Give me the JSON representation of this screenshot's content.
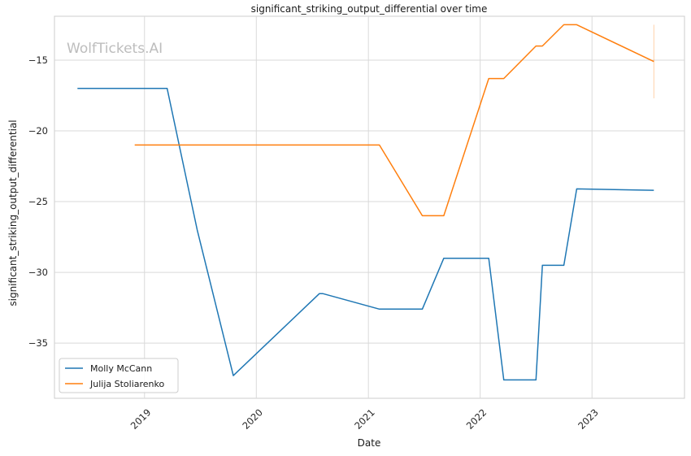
{
  "chart_data": {
    "type": "line",
    "title": "significant_striking_output_differential over time",
    "xlabel": "Date",
    "ylabel": "significant_striking_output_differential",
    "watermark": "WolfTickets.AI",
    "x_ticks": [
      {
        "label": "2019",
        "date": "2019-01-01"
      },
      {
        "label": "2020",
        "date": "2020-01-01"
      },
      {
        "label": "2021",
        "date": "2021-01-01"
      },
      {
        "label": "2022",
        "date": "2022-01-01"
      },
      {
        "label": "2023",
        "date": "2023-01-01"
      }
    ],
    "y_ticks": [
      -35,
      -30,
      -25,
      -20,
      -15
    ],
    "xlim": [
      "2018-03-13",
      "2023-10-30"
    ],
    "ylim": [
      -38.9,
      -11.9
    ],
    "grid": true,
    "legend": "lower-left",
    "series": [
      {
        "name": "Molly McCann",
        "color": "#1f77b4",
        "points": [
          {
            "date": "2018-05-27",
            "value": -17.0
          },
          {
            "date": "2019-03-16",
            "value": -17.0
          },
          {
            "date": "2019-06-22",
            "value": -27.0
          },
          {
            "date": "2019-10-18",
            "value": -37.3
          },
          {
            "date": "2020-07-25",
            "value": -31.5
          },
          {
            "date": "2020-08-05",
            "value": -31.5
          },
          {
            "date": "2021-02-06",
            "value": -32.6
          },
          {
            "date": "2021-06-26",
            "value": -32.6
          },
          {
            "date": "2021-09-04",
            "value": -29.0
          },
          {
            "date": "2022-01-29",
            "value": -29.0
          },
          {
            "date": "2022-03-19",
            "value": -37.6
          },
          {
            "date": "2022-07-02",
            "value": -37.6
          },
          {
            "date": "2022-07-23",
            "value": -29.5
          },
          {
            "date": "2022-10-01",
            "value": -29.5
          },
          {
            "date": "2022-11-12",
            "value": -24.1
          },
          {
            "date": "2023-07-22",
            "value": -24.2
          }
        ]
      },
      {
        "name": "Julija Stoliarenko",
        "color": "#ff7f0e",
        "points": [
          {
            "date": "2018-11-30",
            "value": -21.0
          },
          {
            "date": "2021-02-06",
            "value": -21.0
          },
          {
            "date": "2021-06-26",
            "value": -26.0
          },
          {
            "date": "2021-09-04",
            "value": -26.0
          },
          {
            "date": "2022-01-29",
            "value": -16.3
          },
          {
            "date": "2022-03-19",
            "value": -16.3
          },
          {
            "date": "2022-07-02",
            "value": -14.0
          },
          {
            "date": "2022-07-23",
            "value": -14.0
          },
          {
            "date": "2022-10-01",
            "value": -12.5
          },
          {
            "date": "2022-11-12",
            "value": -12.5
          },
          {
            "date": "2023-07-22",
            "value": -15.1
          }
        ],
        "error_bar": {
          "date": "2023-07-22",
          "low": -17.7,
          "high": -12.5
        }
      }
    ]
  }
}
